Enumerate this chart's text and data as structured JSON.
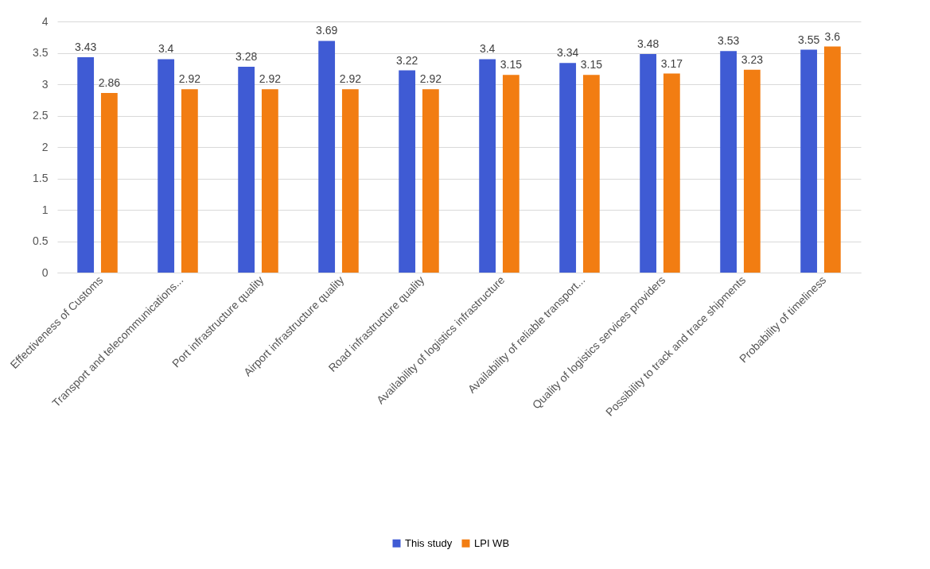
{
  "chart_data": {
    "type": "bar",
    "categories": [
      "Effectiveness of Customs",
      "Transport and telecommunications...",
      "Port infrastructure quality",
      "Airport infrastructure quality",
      "Road infrastructure quality",
      "Availability of logistics infrastructure",
      "Availability of reliable transport...",
      "Quality of logistics services providers",
      "Possibility to track and trace shipments",
      "Probability of timeliness"
    ],
    "series": [
      {
        "name": "This study",
        "color": "#3f5bd4",
        "values": [
          3.43,
          3.4,
          3.28,
          3.69,
          3.22,
          3.4,
          3.34,
          3.48,
          3.53,
          3.55
        ]
      },
      {
        "name": "LPI WB",
        "color": "#f27d12",
        "values": [
          2.86,
          2.92,
          2.92,
          2.92,
          2.92,
          3.15,
          3.15,
          3.17,
          3.23,
          3.6
        ]
      }
    ],
    "ylim": [
      0,
      4
    ],
    "yticks": [
      0,
      0.5,
      1,
      1.5,
      2,
      2.5,
      3,
      3.5,
      4
    ],
    "grid": "y",
    "legend": "bottom",
    "data_labels": true
  }
}
